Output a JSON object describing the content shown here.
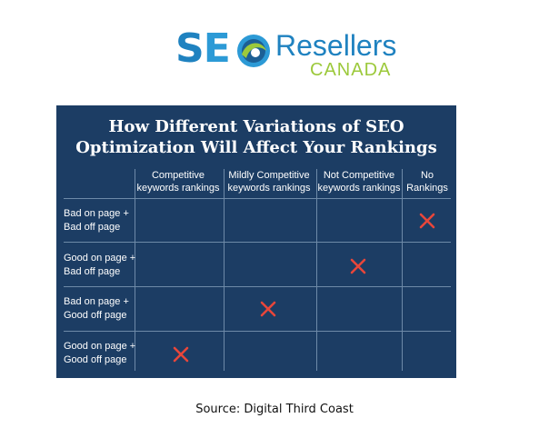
{
  "logo": {
    "seo_s": "S",
    "seo_e": "E",
    "brand": "Resellers",
    "country": "CANADA"
  },
  "infographic": {
    "title_line1": "How Different Variations of SEO",
    "title_line2": "Optimization Will Affect Your Rankings",
    "columns": [
      {
        "line1": "Competitive",
        "line2": "keywords rankings"
      },
      {
        "line1": "Mildly Competitive",
        "line2": "keywords rankings"
      },
      {
        "line1": "Not Competitive",
        "line2": "keywords rankings"
      },
      {
        "line1": "No",
        "line2": "Rankings"
      }
    ],
    "rows": [
      {
        "line1": "Bad on page +",
        "line2": "Bad off page",
        "marked_column": "No Rankings"
      },
      {
        "line1": "Good on page +",
        "line2": "Bad off page",
        "marked_column": "Not Competitive keywords rankings"
      },
      {
        "line1": "Bad on page +",
        "line2": "Good off page",
        "marked_column": "Mildly Competitive keywords rankings"
      },
      {
        "line1": "Good on page +",
        "line2": "Good off page",
        "marked_column": "Competitive keywords rankings"
      }
    ],
    "mark_color": "#e8463a",
    "background_color": "#1c3d64"
  },
  "caption": "Source: Digital Third Coast"
}
